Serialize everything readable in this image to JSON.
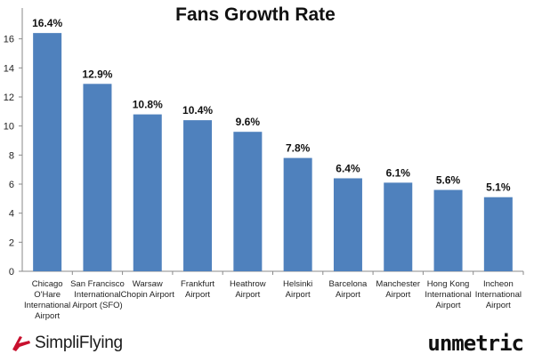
{
  "chart_data": {
    "type": "bar",
    "title": "Fans Growth Rate",
    "categories": [
      [
        "Chicago",
        "O'Hare",
        "International",
        "Airport"
      ],
      [
        "San Francisco",
        "International",
        "Airport (SFO)"
      ],
      [
        "Warsaw",
        "Chopin Airport"
      ],
      [
        "Frankfurt",
        "Airport"
      ],
      [
        "Heathrow",
        "Airport"
      ],
      [
        "Helsinki",
        "Airport"
      ],
      [
        "Barcelona",
        "Airport"
      ],
      [
        "Manchester",
        "Airport"
      ],
      [
        "Hong Kong",
        "International",
        "Airport"
      ],
      [
        "Incheon",
        "International",
        "Airport"
      ]
    ],
    "values": [
      16.4,
      12.9,
      10.8,
      10.4,
      9.6,
      7.8,
      6.4,
      6.1,
      5.6,
      5.1
    ],
    "data_labels": [
      "16.4%",
      "12.9%",
      "10.8%",
      "10.4%",
      "9.6%",
      "7.8%",
      "6.4%",
      "6.1%",
      "5.6%",
      "5.1%"
    ],
    "ylim": [
      0,
      18
    ],
    "yticks": [
      0,
      2,
      4,
      6,
      8,
      10,
      12,
      14,
      16
    ],
    "xlabel": "",
    "ylabel": "",
    "grid": false,
    "bar_color": "#4F81BD"
  },
  "logos": {
    "left": "SimpliFlying",
    "right": "unmetric"
  }
}
